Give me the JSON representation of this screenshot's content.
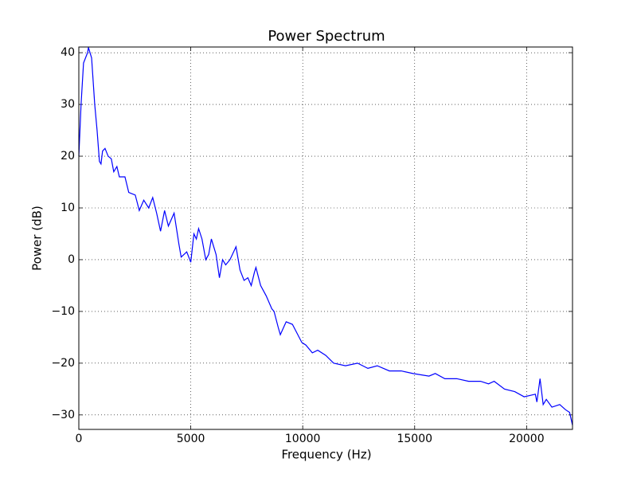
{
  "chart_data": {
    "type": "line",
    "title": "Power Spectrum",
    "x_label": "Frequency (Hz)",
    "y_label": "Power (dB)",
    "x": [
      0,
      100,
      210,
      390,
      430,
      570,
      710,
      815,
      920,
      990,
      1060,
      1170,
      1310,
      1450,
      1560,
      1700,
      1810,
      2060,
      2230,
      2520,
      2700,
      2900,
      3120,
      3300,
      3475,
      3650,
      3830,
      4000,
      4255,
      4470,
      4570,
      4820,
      5000,
      5140,
      5250,
      5350,
      5500,
      5670,
      5800,
      5920,
      6130,
      6280,
      6420,
      6560,
      6750,
      7020,
      7200,
      7380,
      7550,
      7700,
      7840,
      7910,
      8120,
      8370,
      8620,
      8720,
      8900,
      9000,
      9260,
      9540,
      9720,
      9960,
      10140,
      10430,
      10670,
      11030,
      11380,
      11910,
      12450,
      12910,
      13330,
      13870,
      14400,
      14930,
      15640,
      15920,
      16350,
      16880,
      17410,
      17940,
      18300,
      18550,
      19010,
      19470,
      19890,
      20390,
      20460,
      20600,
      20740,
      20880,
      21130,
      21480,
      21740,
      21920,
      22050
    ],
    "values": [
      20,
      30,
      38,
      40,
      41,
      39,
      30,
      25,
      19,
      18.5,
      21,
      21.5,
      20,
      19.5,
      17,
      18,
      16,
      16,
      13,
      12.5,
      9.5,
      11.5,
      10,
      12,
      9,
      5.5,
      9.5,
      6.5,
      9,
      3,
      0.5,
      1.5,
      -0.5,
      5,
      4,
      6,
      4,
      0,
      1,
      4,
      1,
      -3.5,
      0,
      -1,
      0,
      2.5,
      -2,
      -4,
      -3.5,
      -5,
      -2.5,
      -1.5,
      -5,
      -7,
      -9.5,
      -10,
      -13,
      -14.5,
      -12,
      -12.5,
      -14,
      -16,
      -16.5,
      -18,
      -17.5,
      -18.5,
      -20,
      -20.5,
      -20,
      -21,
      -20.5,
      -21.5,
      -21.5,
      -22,
      -22.5,
      -22,
      -23,
      -23,
      -23.5,
      -23.5,
      -24,
      -23.5,
      -25,
      -25.5,
      -26.5,
      -26,
      -27.5,
      -23,
      -28,
      -27,
      -28.5,
      -28,
      -29,
      -29.5,
      -32
    ],
    "color": "#0000ff",
    "xlim": [
      0,
      22050
    ],
    "xticks": [
      0,
      5000,
      10000,
      15000,
      20000
    ],
    "ylim": [
      -32.8,
      41.1
    ],
    "yticks": [
      {
        "value": -30,
        "label": "−30"
      },
      {
        "value": -20,
        "label": "−20"
      },
      {
        "value": -10,
        "label": "−10"
      },
      0,
      10,
      20,
      30,
      40
    ],
    "grid": true
  }
}
